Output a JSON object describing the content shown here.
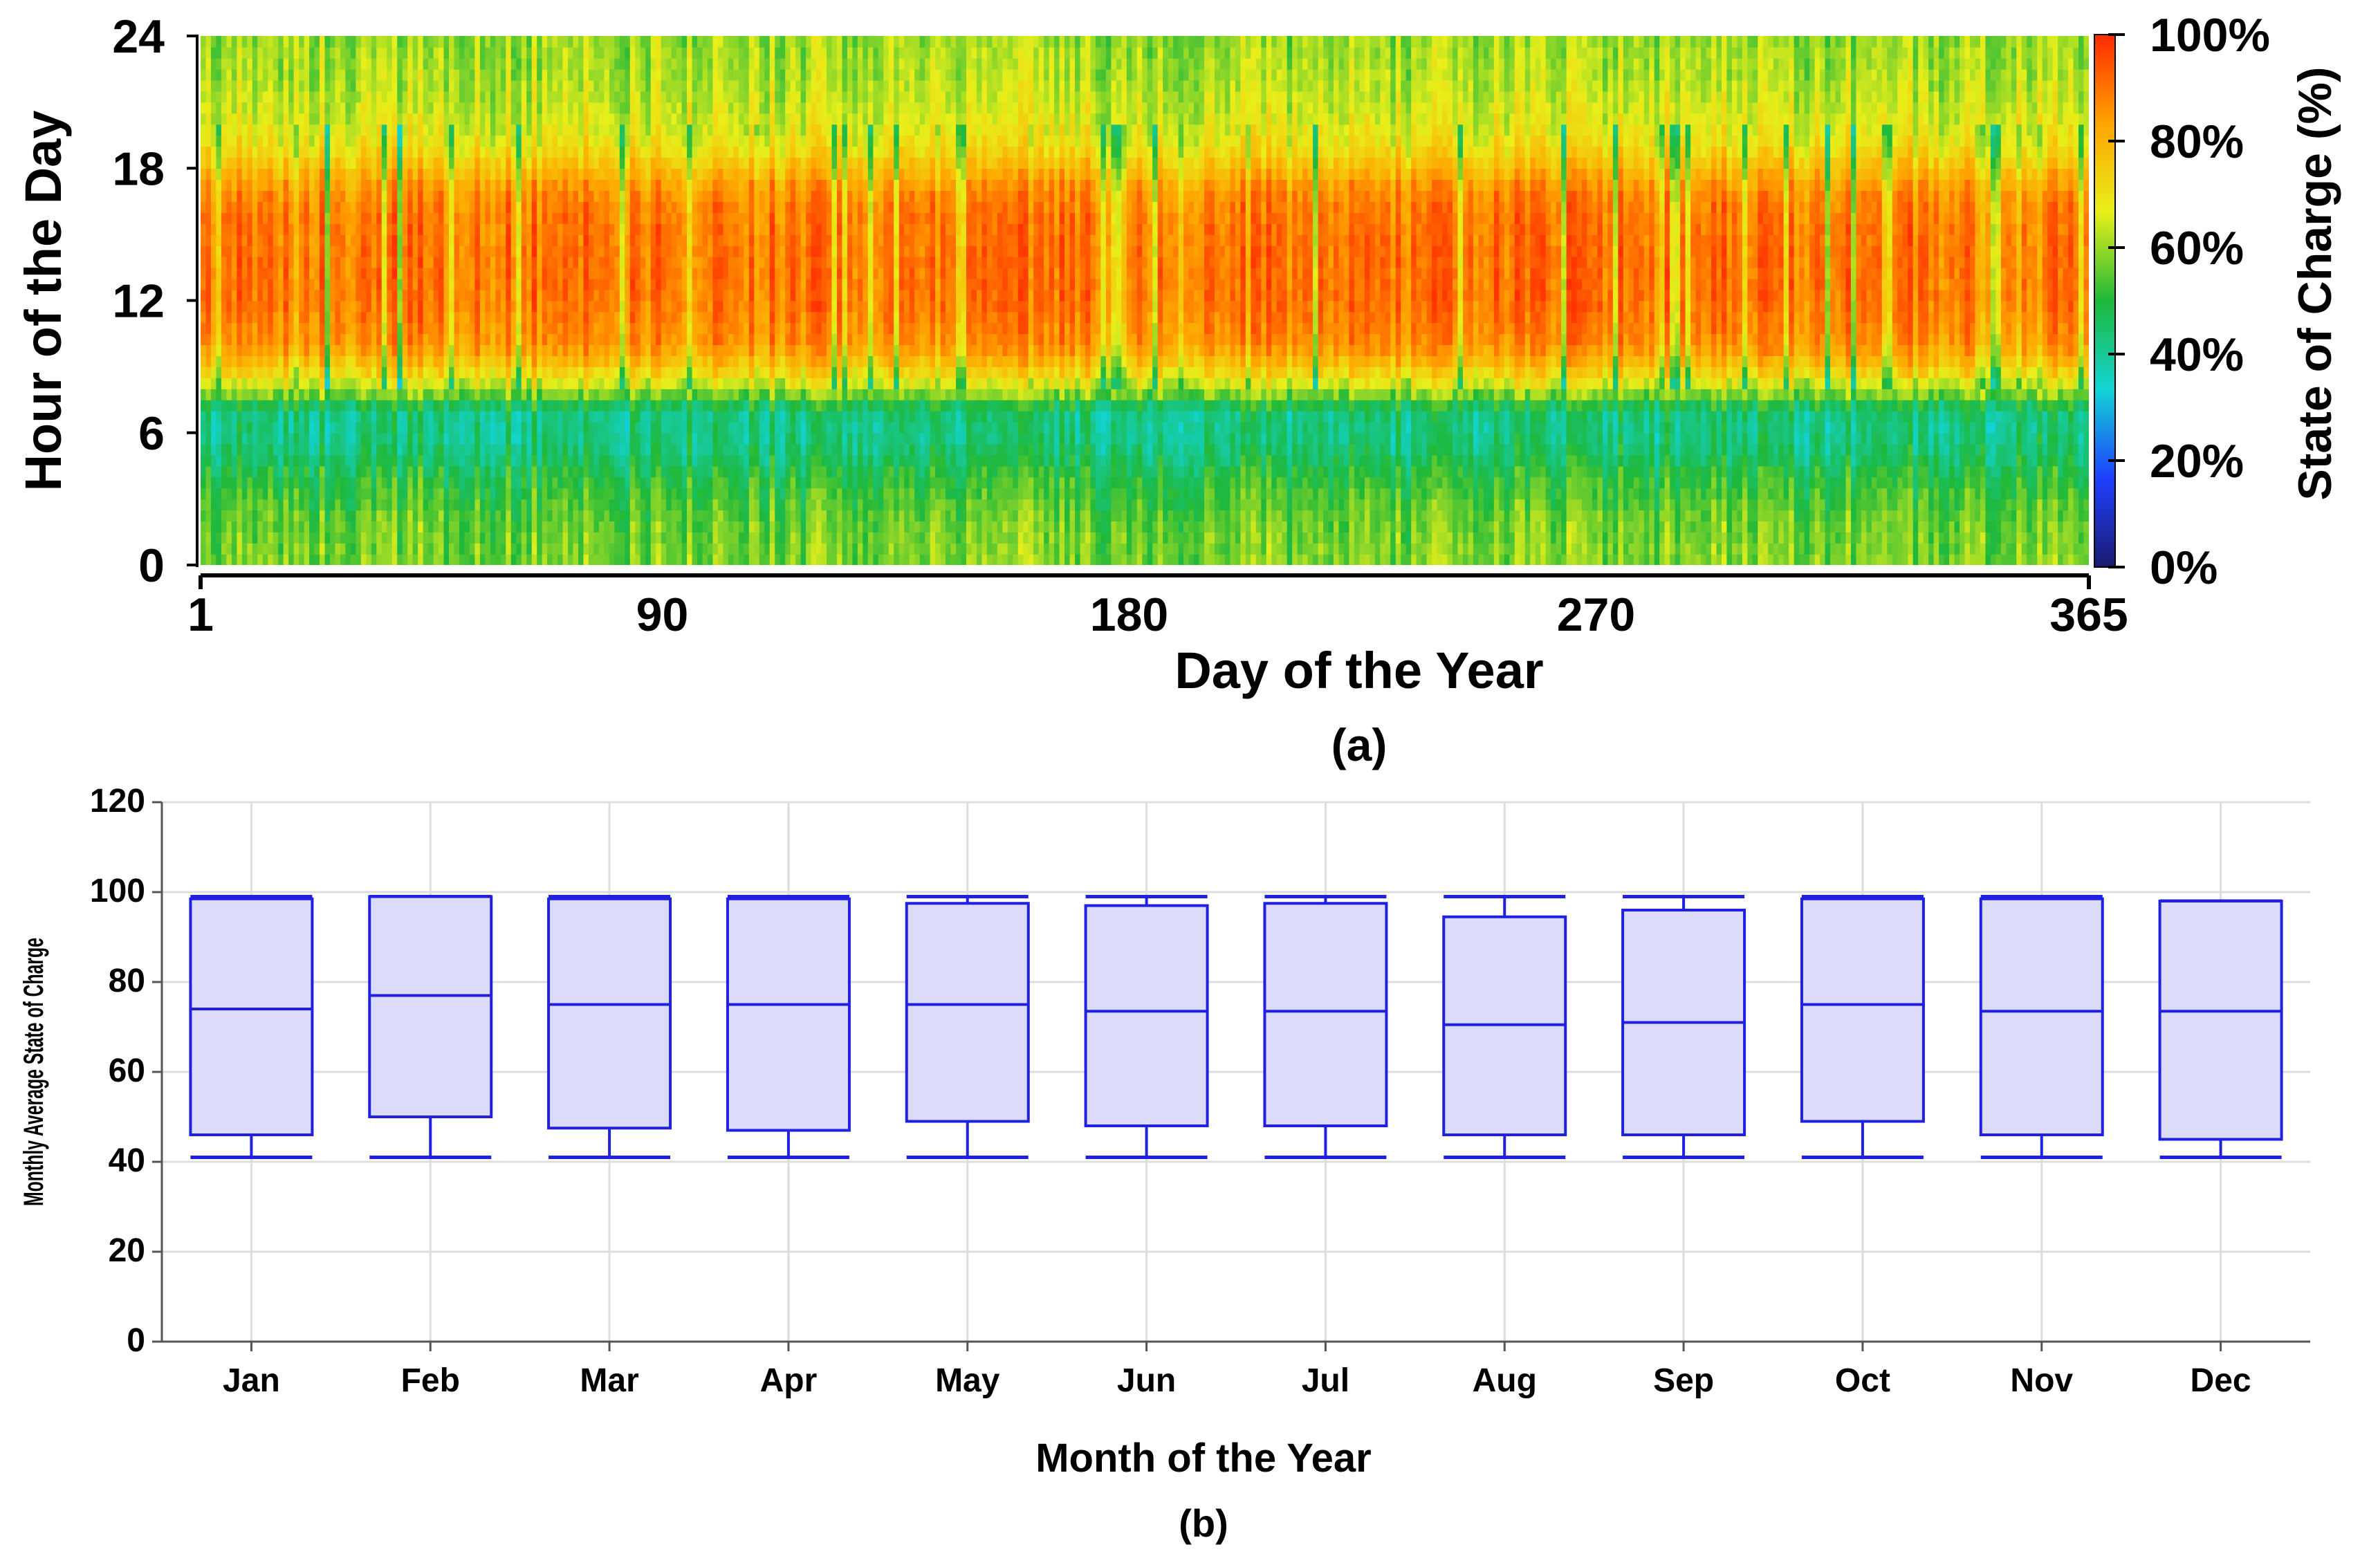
{
  "chart_data": [
    {
      "type": "heatmap",
      "panel_label": "(a)",
      "xlabel": "Day of the Year",
      "ylabel": "Hour of the Day",
      "x_range": [
        1,
        365
      ],
      "y_range": [
        0,
        24
      ],
      "x_ticks": [
        "1",
        "90",
        "180",
        "270",
        "365"
      ],
      "y_ticks": [
        "0",
        "6",
        "12",
        "18",
        "24"
      ],
      "colorbar": {
        "label": "State of Charge (%)",
        "range": [
          0,
          100
        ],
        "ticks": [
          "0%",
          "20%",
          "40%",
          "60%",
          "80%",
          "100%"
        ],
        "colors": [
          "#1a1a6e",
          "#1f3fff",
          "#12d4d4",
          "#1fb83a",
          "#e8ef1a",
          "#ffa400",
          "#ff2a00"
        ]
      },
      "hourly_profile": {
        "hours": [
          0,
          2,
          4,
          5,
          6,
          7,
          8,
          9,
          10,
          12,
          14,
          16,
          17,
          18,
          19,
          20,
          22,
          24
        ],
        "typical_soc": [
          58,
          56,
          50,
          45,
          42,
          43,
          62,
          76,
          86,
          90,
          90,
          89,
          86,
          78,
          70,
          66,
          62,
          60
        ]
      }
    },
    {
      "type": "box",
      "panel_label": "(b)",
      "xlabel": "Month of the Year",
      "ylabel": "Monthly Average State of Charge",
      "ylim": [
        0,
        120
      ],
      "y_ticks": [
        "0",
        "20",
        "40",
        "60",
        "80",
        "100",
        "120"
      ],
      "box_fill": "#dcdcfa",
      "box_stroke": "#2020e0",
      "categories": [
        "Jan",
        "Feb",
        "Mar",
        "Apr",
        "May",
        "Jun",
        "Jul",
        "Aug",
        "Sep",
        "Oct",
        "Nov",
        "Dec"
      ],
      "series": [
        {
          "name": "Jan",
          "min": 41,
          "q1": 46,
          "median": 74,
          "q3": 98.5,
          "max": 99
        },
        {
          "name": "Feb",
          "min": 41,
          "q1": 50,
          "median": 77,
          "q3": 99,
          "max": 99
        },
        {
          "name": "Mar",
          "min": 41,
          "q1": 47.5,
          "median": 75,
          "q3": 98.5,
          "max": 99
        },
        {
          "name": "Apr",
          "min": 41,
          "q1": 47,
          "median": 75,
          "q3": 98.5,
          "max": 99
        },
        {
          "name": "May",
          "min": 41,
          "q1": 49,
          "median": 75,
          "q3": 97.5,
          "max": 99
        },
        {
          "name": "Jun",
          "min": 41,
          "q1": 48,
          "median": 73.5,
          "q3": 97,
          "max": 99
        },
        {
          "name": "Jul",
          "min": 41,
          "q1": 48,
          "median": 73.5,
          "q3": 97.5,
          "max": 99
        },
        {
          "name": "Aug",
          "min": 41,
          "q1": 46,
          "median": 70.5,
          "q3": 94.5,
          "max": 99
        },
        {
          "name": "Sep",
          "min": 41,
          "q1": 46,
          "median": 71,
          "q3": 96,
          "max": 99
        },
        {
          "name": "Oct",
          "min": 41,
          "q1": 49,
          "median": 75,
          "q3": 98.5,
          "max": 99
        },
        {
          "name": "Nov",
          "min": 41,
          "q1": 46,
          "median": 73.5,
          "q3": 98.5,
          "max": 99
        },
        {
          "name": "Dec",
          "min": 41,
          "q1": 45,
          "median": 73.5,
          "q3": 98,
          "max": 98
        }
      ]
    }
  ]
}
